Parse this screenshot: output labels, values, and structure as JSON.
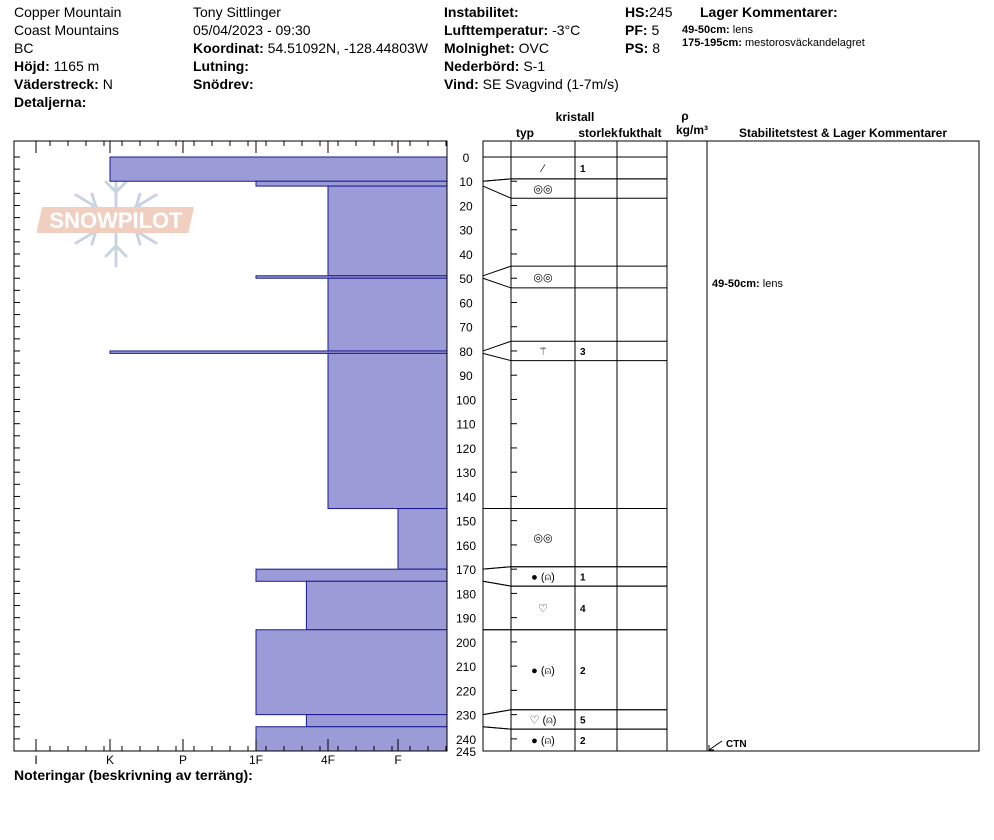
{
  "header": {
    "location": "Copper Mountain",
    "range": "Coast Mountains",
    "region": "BC",
    "elevation_label": "Höjd:",
    "elevation": "1165 m",
    "aspect_label": "Väderstreck:",
    "aspect": "N",
    "details_label": "Detaljerna:",
    "observer": "Tony Sittlinger",
    "datetime": "05/04/2023 - 09:30",
    "coord_label": "Koordinat:",
    "coord": "54.51092N, -128.44803W",
    "slope_label": "Lutning:",
    "drift_label": "Snödrev:",
    "stability_label": "Instabilitet:",
    "airtemp_label": "Lufttemperatur:",
    "airtemp": "-3°C",
    "sky_label": "Molnighet:",
    "sky": "OVC",
    "precip_label": "Nederbörd:",
    "precip": "S-1",
    "wind_label": "Vind:",
    "wind": "SE Svagvind (1-7m/s)",
    "hs_label": "HS:",
    "hs": "245",
    "pf_label": "PF:",
    "pf": "5",
    "ps_label": "PS:",
    "ps": "8",
    "layer_comments_title": "Lager Kommentarer:",
    "layer_comments": [
      {
        "depth": "49-50cm:",
        "text": "lens"
      },
      {
        "depth": "175-195cm:",
        "text": "mestorosväckandelagret"
      }
    ]
  },
  "columns": {
    "crystal": "kristall",
    "type": "typ",
    "size": "storlek",
    "moisture": "fukthalt",
    "rho": "ρ",
    "density_unit": "kg/m³",
    "stability_title": "Stabilitetstest & Lager Kommentarer"
  },
  "notes_label": "Noteringar (beskrivning av terräng):",
  "watermark": "SNOWPILOT",
  "colors": {
    "hardness_fill": "#9b9bd7",
    "hardness_line": "#1a1a8c",
    "grid": "#000000"
  },
  "chart_data": {
    "type": "bar",
    "orientation": "horizontal",
    "depth_range": [
      0,
      245
    ],
    "depth_ticks": [
      0,
      10,
      20,
      30,
      40,
      50,
      60,
      70,
      80,
      90,
      100,
      110,
      120,
      130,
      140,
      150,
      160,
      170,
      180,
      190,
      200,
      210,
      220,
      230,
      240,
      245
    ],
    "hardness_scale": [
      "I",
      "K",
      "P",
      "1F",
      "4F",
      "F"
    ],
    "layers": [
      {
        "top": 0,
        "bottom": 10,
        "hardness": 2
      },
      {
        "top": 10,
        "bottom": 12,
        "hardness": 4
      },
      {
        "top": 12,
        "bottom": 49,
        "hardness": 5
      },
      {
        "top": 49,
        "bottom": 50,
        "hardness": 4
      },
      {
        "top": 50,
        "bottom": 80,
        "hardness": 5
      },
      {
        "top": 80,
        "bottom": 81,
        "hardness": 2
      },
      {
        "top": 81,
        "bottom": 145,
        "hardness": 5
      },
      {
        "top": 145,
        "bottom": 170,
        "hardness": 6
      },
      {
        "top": 170,
        "bottom": 175,
        "hardness": 4
      },
      {
        "top": 175,
        "bottom": 195,
        "hardness": 4.7
      },
      {
        "top": 195,
        "bottom": 230,
        "hardness": 4
      },
      {
        "top": 230,
        "bottom": 235,
        "hardness": 4.7
      },
      {
        "top": 235,
        "bottom": 245,
        "hardness": 4
      }
    ],
    "crystals": [
      {
        "top": 0,
        "bottom": 9,
        "symbol": "⁄",
        "size": "1",
        "band": [
          0,
          10
        ]
      },
      {
        "top": 9,
        "bottom": 17,
        "symbol": "◎◎",
        "size": "",
        "band": [
          10,
          12
        ]
      },
      {
        "top": 45,
        "bottom": 54,
        "symbol": "◎◎",
        "size": "",
        "band": [
          49,
          50
        ]
      },
      {
        "top": 76,
        "bottom": 84,
        "symbol": "⚚",
        "size": "3",
        "band": [
          80,
          81
        ]
      },
      {
        "top": 145,
        "bottom": 169,
        "symbol": "◎◎",
        "size": "",
        "band": [
          145,
          170
        ]
      },
      {
        "top": 169,
        "bottom": 177,
        "symbol": "● (⍝)",
        "size": "1",
        "band": [
          170,
          175
        ]
      },
      {
        "top": 177,
        "bottom": 195,
        "symbol": "♡",
        "size": "4",
        "band": [
          175,
          195
        ]
      },
      {
        "top": 195,
        "bottom": 228,
        "symbol": "● (⍝)",
        "size": "2",
        "band": [
          195,
          230
        ]
      },
      {
        "top": 228,
        "bottom": 236,
        "symbol": "♡ (⍝)",
        "size": "5",
        "band": [
          230,
          235
        ]
      },
      {
        "top": 236,
        "bottom": 245,
        "symbol": "● (⍝)",
        "size": "2",
        "band": [
          235,
          245
        ]
      }
    ],
    "comments": [
      {
        "depth": 50,
        "label": "49-50cm:",
        "text": "lens"
      }
    ],
    "test": {
      "depth": 245,
      "label": "CTN"
    }
  }
}
